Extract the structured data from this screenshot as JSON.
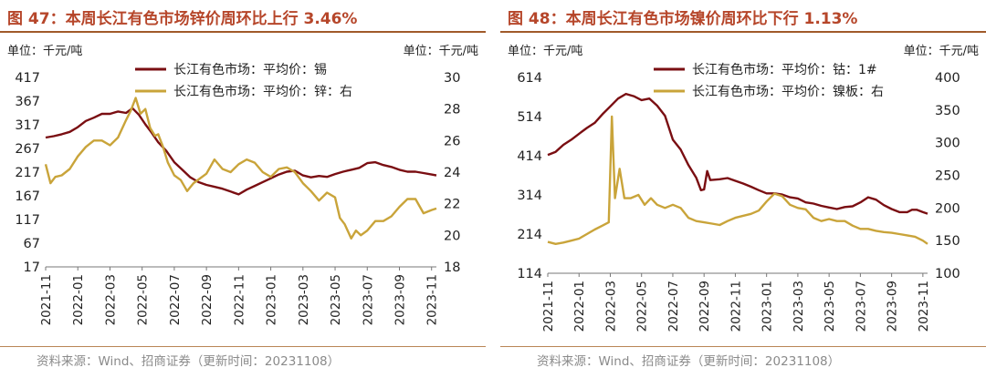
{
  "chart_data": [
    {
      "type": "line",
      "title": "图 47：本周长江有色市场锌价周环比上行 3.46%",
      "left_unit_label": "单位：千元/吨",
      "right_unit_label": "单位：千元/吨",
      "source": "资料来源：Wind、招商证券（更新时间：20231108）",
      "x_ticks": [
        "2021-11",
        "2022-01",
        "2022-03",
        "2022-05",
        "2022-07",
        "2022-09",
        "2022-11",
        "2023-01",
        "2023-03",
        "2023-05",
        "2023-07",
        "2023-09",
        "2023-11"
      ],
      "x_range": [
        0,
        24.3
      ],
      "y_left": {
        "ticks": [
          417,
          367,
          317,
          267,
          217,
          167,
          117,
          67,
          17
        ],
        "range": [
          17,
          417
        ]
      },
      "y_right": {
        "ticks": [
          30,
          28,
          26,
          24,
          22,
          20,
          18
        ],
        "range": [
          18,
          30
        ]
      },
      "legend_position": "top-center",
      "series": [
        {
          "name": "长江有色市场：平均价：锡",
          "axis": "left",
          "color": "#7a0e12",
          "points": [
            [
              0,
              290
            ],
            [
              0.5,
              293
            ],
            [
              1,
              297
            ],
            [
              1.5,
              302
            ],
            [
              2,
              312
            ],
            [
              2.5,
              325
            ],
            [
              3,
              332
            ],
            [
              3.5,
              340
            ],
            [
              4,
              340
            ],
            [
              4.5,
              345
            ],
            [
              5,
              342
            ],
            [
              5.4,
              352
            ],
            [
              5.8,
              338
            ],
            [
              6.2,
              318
            ],
            [
              6.6,
              300
            ],
            [
              7,
              280
            ],
            [
              7.5,
              262
            ],
            [
              8,
              238
            ],
            [
              8.5,
              222
            ],
            [
              9,
              206
            ],
            [
              9.5,
              196
            ],
            [
              10,
              190
            ],
            [
              10.5,
              186
            ],
            [
              11,
              182
            ],
            [
              11.5,
              176
            ],
            [
              12,
              170
            ],
            [
              12.5,
              180
            ],
            [
              13,
              188
            ],
            [
              13.5,
              196
            ],
            [
              14,
              204
            ],
            [
              14.5,
              212
            ],
            [
              15,
              218
            ],
            [
              15.5,
              220
            ],
            [
              16,
              210
            ],
            [
              16.5,
              206
            ],
            [
              17,
              209
            ],
            [
              17.5,
              207
            ],
            [
              18,
              213
            ],
            [
              18.5,
              218
            ],
            [
              19,
              222
            ],
            [
              19.5,
              226
            ],
            [
              20,
              236
            ],
            [
              20.5,
              238
            ],
            [
              21,
              232
            ],
            [
              21.5,
              228
            ],
            [
              22,
              222
            ],
            [
              22.5,
              218
            ],
            [
              23,
              218
            ],
            [
              23.5,
              215
            ],
            [
              24,
              212
            ],
            [
              24.3,
              210
            ]
          ]
        },
        {
          "name": "长江有色市场：平均价：锌：右",
          "axis": "right",
          "color": "#c9a43a",
          "points": [
            [
              0,
              24.5
            ],
            [
              0.3,
              23.3
            ],
            [
              0.6,
              23.7
            ],
            [
              1,
              23.8
            ],
            [
              1.5,
              24.2
            ],
            [
              2,
              25.0
            ],
            [
              2.5,
              25.6
            ],
            [
              3,
              26.0
            ],
            [
              3.5,
              26.0
            ],
            [
              4,
              25.7
            ],
            [
              4.5,
              26.2
            ],
            [
              5,
              27.3
            ],
            [
              5.3,
              27.9
            ],
            [
              5.6,
              28.7
            ],
            [
              5.9,
              27.7
            ],
            [
              6.2,
              28.0
            ],
            [
              6.5,
              26.8
            ],
            [
              6.8,
              26.3
            ],
            [
              7,
              26.4
            ],
            [
              7.3,
              25.6
            ],
            [
              7.6,
              24.6
            ],
            [
              8,
              23.8
            ],
            [
              8.4,
              23.5
            ],
            [
              8.8,
              22.8
            ],
            [
              9.2,
              23.3
            ],
            [
              9.6,
              23.6
            ],
            [
              10,
              23.9
            ],
            [
              10.5,
              24.8
            ],
            [
              11,
              24.2
            ],
            [
              11.5,
              24.0
            ],
            [
              12,
              24.5
            ],
            [
              12.5,
              24.8
            ],
            [
              13,
              24.6
            ],
            [
              13.5,
              24.0
            ],
            [
              14,
              23.7
            ],
            [
              14.5,
              24.2
            ],
            [
              15,
              24.3
            ],
            [
              15.5,
              24.0
            ],
            [
              16,
              23.3
            ],
            [
              16.5,
              22.8
            ],
            [
              17,
              22.2
            ],
            [
              17.5,
              22.7
            ],
            [
              18,
              22.4
            ],
            [
              18.3,
              21.1
            ],
            [
              18.6,
              20.7
            ],
            [
              19,
              19.8
            ],
            [
              19.3,
              20.3
            ],
            [
              19.6,
              20.0
            ],
            [
              20,
              20.3
            ],
            [
              20.5,
              20.9
            ],
            [
              21,
              20.9
            ],
            [
              21.5,
              21.2
            ],
            [
              22,
              21.8
            ],
            [
              22.5,
              22.3
            ],
            [
              23,
              22.3
            ],
            [
              23.5,
              21.4
            ],
            [
              24,
              21.6
            ],
            [
              24.3,
              21.7
            ]
          ]
        }
      ]
    },
    {
      "type": "line",
      "title": "图 48：本周长江有色市场镍价周环比下行 1.13%",
      "left_unit_label": "单位：千元/吨",
      "right_unit_label": "单位：千元/吨",
      "source": "资料来源：Wind、招商证券（更新时间：20231108）",
      "x_ticks": [
        "2021-11",
        "2022-01",
        "2022-03",
        "2022-05",
        "2022-07",
        "2022-09",
        "2022-11",
        "2023-01",
        "2023-03",
        "2023-05",
        "2023-07",
        "2023-09",
        "2023-11"
      ],
      "x_range": [
        0,
        24.3
      ],
      "y_left": {
        "ticks": [
          614,
          514,
          414,
          314,
          214,
          114
        ],
        "range": [
          114,
          614
        ]
      },
      "y_right": {
        "ticks": [
          400,
          350,
          300,
          250,
          200,
          150,
          100
        ],
        "range": [
          100,
          400
        ]
      },
      "legend_position": "top-center",
      "series": [
        {
          "name": "长江有色市场：平均价：钴：1#",
          "axis": "left",
          "color": "#7a0e12",
          "points": [
            [
              0,
              416
            ],
            [
              0.5,
              424
            ],
            [
              1,
              442
            ],
            [
              1.5,
              455
            ],
            [
              2,
              470
            ],
            [
              2.5,
              485
            ],
            [
              3,
              498
            ],
            [
              3.5,
              520
            ],
            [
              4,
              540
            ],
            [
              4.5,
              560
            ],
            [
              5,
              572
            ],
            [
              5.5,
              566
            ],
            [
              6,
              556
            ],
            [
              6.5,
              560
            ],
            [
              7,
              542
            ],
            [
              7.5,
              516
            ],
            [
              8,
              455
            ],
            [
              8.5,
              430
            ],
            [
              9,
              390
            ],
            [
              9.5,
              358
            ],
            [
              9.8,
              326
            ],
            [
              10,
              328
            ],
            [
              10.2,
              375
            ],
            [
              10.4,
              352
            ],
            [
              11,
              354
            ],
            [
              11.5,
              357
            ],
            [
              12,
              350
            ],
            [
              12.5,
              343
            ],
            [
              13,
              335
            ],
            [
              13.5,
              326
            ],
            [
              14,
              318
            ],
            [
              14.5,
              318
            ],
            [
              15,
              315
            ],
            [
              15.5,
              308
            ],
            [
              16,
              305
            ],
            [
              16.5,
              295
            ],
            [
              17,
              292
            ],
            [
              17.5,
              286
            ],
            [
              18,
              282
            ],
            [
              18.5,
              278
            ],
            [
              19,
              283
            ],
            [
              19.5,
              285
            ],
            [
              20,
              295
            ],
            [
              20.5,
              308
            ],
            [
              21,
              302
            ],
            [
              21.5,
              288
            ],
            [
              22,
              278
            ],
            [
              22.5,
              270
            ],
            [
              23,
              270
            ],
            [
              23.3,
              276
            ],
            [
              23.6,
              276
            ],
            [
              24,
              270
            ],
            [
              24.3,
              266
            ]
          ]
        },
        {
          "name": "长江有色市场：平均价：镍板：右",
          "axis": "right",
          "color": "#c9a43a",
          "points": [
            [
              0,
              148
            ],
            [
              0.5,
              145
            ],
            [
              1,
              147
            ],
            [
              1.5,
              150
            ],
            [
              2,
              153
            ],
            [
              2.5,
              160
            ],
            [
              3,
              167
            ],
            [
              3.5,
              173
            ],
            [
              3.9,
              178
            ],
            [
              4.1,
              340
            ],
            [
              4.3,
              215
            ],
            [
              4.6,
              260
            ],
            [
              4.9,
              215
            ],
            [
              5.3,
              215
            ],
            [
              5.8,
              220
            ],
            [
              6.2,
              205
            ],
            [
              6.6,
              215
            ],
            [
              7,
              205
            ],
            [
              7.5,
              200
            ],
            [
              8,
              205
            ],
            [
              8.5,
              200
            ],
            [
              9,
              185
            ],
            [
              9.5,
              180
            ],
            [
              10,
              178
            ],
            [
              10.5,
              176
            ],
            [
              11,
              174
            ],
            [
              11.5,
              180
            ],
            [
              12,
              185
            ],
            [
              12.5,
              188
            ],
            [
              13,
              191
            ],
            [
              13.5,
              196
            ],
            [
              14,
              210
            ],
            [
              14.5,
              222
            ],
            [
              15,
              218
            ],
            [
              15.5,
              205
            ],
            [
              16,
              200
            ],
            [
              16.5,
              198
            ],
            [
              17,
              185
            ],
            [
              17.5,
              180
            ],
            [
              18,
              183
            ],
            [
              18.5,
              180
            ],
            [
              19,
              180
            ],
            [
              19.5,
              173
            ],
            [
              20,
              168
            ],
            [
              20.5,
              168
            ],
            [
              21,
              165
            ],
            [
              21.5,
              163
            ],
            [
              22,
              162
            ],
            [
              22.5,
              160
            ],
            [
              23,
              158
            ],
            [
              23.5,
              156
            ],
            [
              24,
              150
            ],
            [
              24.3,
              145
            ]
          ]
        }
      ]
    }
  ]
}
